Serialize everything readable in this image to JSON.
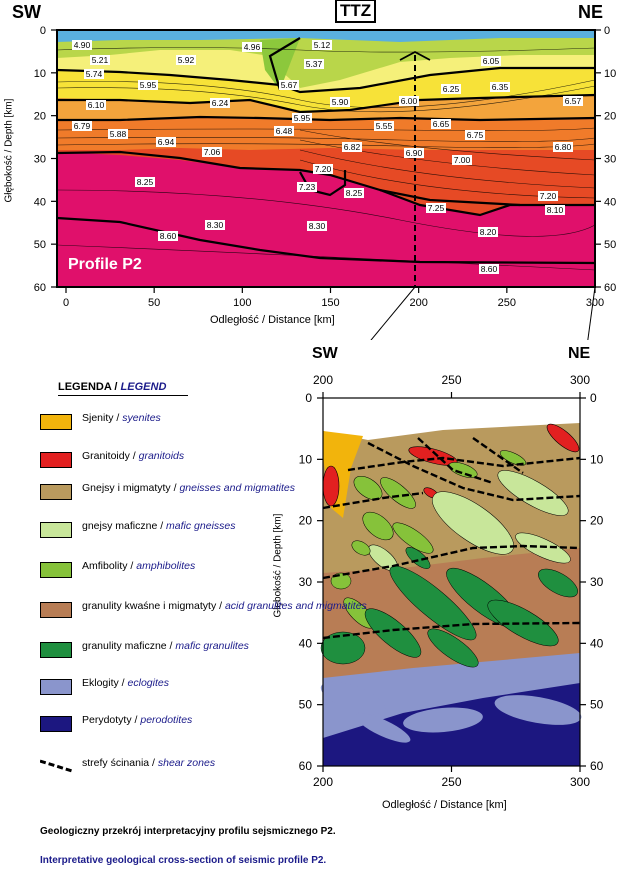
{
  "top_profile": {
    "sw_label": "SW",
    "ne_label": "NE",
    "ttz_label": "TTZ",
    "profile_label": "Profile P2",
    "y_axis_label": "Głębokość / Depth [km]",
    "x_axis_label": "Odległość / Distance [km]",
    "x_ticks": [
      "0",
      "50",
      "100",
      "150",
      "200",
      "250",
      "300"
    ],
    "y_ticks": [
      "0",
      "10",
      "20",
      "30",
      "40",
      "50",
      "60"
    ],
    "velocities": [
      "4.90",
      "4.96",
      "5.12",
      "5.21",
      "5.92",
      "5.37",
      "6.05",
      "5.74",
      "5.95",
      "5.67",
      "6.25",
      "6.35",
      "6.10",
      "6.24",
      "5.90",
      "6.00",
      "6.57",
      "5.95",
      "6.79",
      "5.88",
      "5.55",
      "6.65",
      "6.48",
      "6.75",
      "6.94",
      "7.06",
      "6.82",
      "6.90",
      "6.80",
      "7.00",
      "7.20",
      "8.25",
      "7.23",
      "8.25",
      "7.20",
      "7.25",
      "8.10",
      "8.30",
      "8.30",
      "8.20",
      "8.60",
      "8.60"
    ]
  },
  "detail": {
    "sw_label": "SW",
    "ne_label": "NE",
    "y_axis_label": "Głębokość / Depth [km]",
    "x_axis_label": "Odległość / Distance [km]",
    "x_ticks": [
      "200",
      "250",
      "300"
    ],
    "y_ticks": [
      "0",
      "10",
      "20",
      "30",
      "40",
      "50",
      "60"
    ]
  },
  "legend": {
    "title_pl": "LEGENDA / ",
    "title_en": "LEGEND",
    "items": [
      {
        "pl": "Sjenity / ",
        "en": "syenites",
        "color": "#f2b40c"
      },
      {
        "pl": "Granitoidy / ",
        "en": "granitoids",
        "color": "#e22020"
      },
      {
        "pl": "Gnejsy i migmatyty / ",
        "en": "gneisses and migmatites",
        "color": "#b99a5e"
      },
      {
        "pl": "gnejsy maficzne / ",
        "en": "mafic gneisses",
        "color": "#c8e69a"
      },
      {
        "pl": "Amfibolity / ",
        "en": "amphibolites",
        "color": "#86c23a"
      },
      {
        "pl": "granulity kwaśne i migmatyty / ",
        "en": "acid granulites and migmatites",
        "color": "#b87d55"
      },
      {
        "pl": "granulity maficzne / ",
        "en": "mafic granulites",
        "color": "#1f8f3f"
      },
      {
        "pl": "Eklogity / ",
        "en": "eclogites",
        "color": "#8a95cc"
      },
      {
        "pl": "Perydotyty / ",
        "en": "perodotites",
        "color": "#1c1780"
      },
      {
        "pl": "strefy ścinania / ",
        "en": "shear zones",
        "color": "#000000"
      }
    ]
  },
  "captions": {
    "pl": "Geologiczny przekrój interpretacyjny profilu sejsmicznego P2.",
    "en": "Interpretative geological cross-section of seismic profile P2."
  }
}
